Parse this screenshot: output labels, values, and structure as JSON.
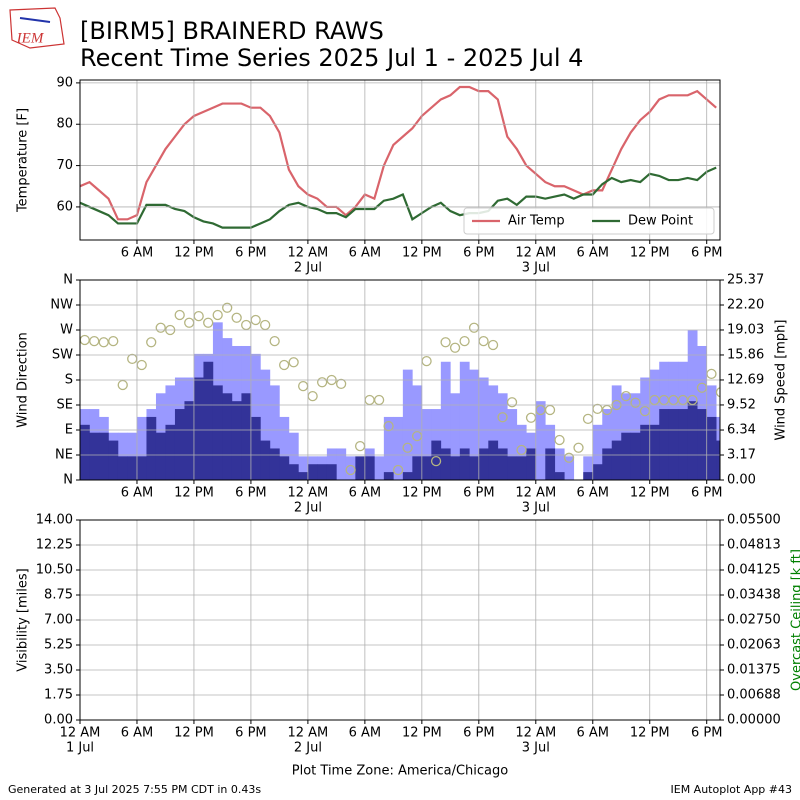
{
  "header": {
    "logo": "IEM",
    "title": "[BIRM5] BRAINERD RAWS",
    "subtitle": "Recent Time Series 2025 Jul 1 - 2025 Jul 4"
  },
  "footer": {
    "left": "Generated at 3 Jul 2025 7:55 PM CDT in 0.43s",
    "right": "IEM Autoplot App #43"
  },
  "chart_data": [
    {
      "type": "line",
      "ylabel": "Temperature [F]",
      "xlim": [
        0,
        67.4
      ],
      "ylim": [
        52,
        90.7
      ],
      "yticks": [
        60,
        70,
        80,
        90
      ],
      "grid": true,
      "legend": "lower-right",
      "xticks": [
        {
          "value": 6,
          "label": "6 AM"
        },
        {
          "value": 12,
          "label": "12 PM"
        },
        {
          "value": 18,
          "label": "6 PM"
        },
        {
          "value": 24,
          "label": "12 AM"
        },
        {
          "value": 30,
          "label": "6 AM"
        },
        {
          "value": 36,
          "label": "12 PM"
        },
        {
          "value": 42,
          "label": "6 PM"
        },
        {
          "value": 48,
          "label": "12 AM"
        },
        {
          "value": 54,
          "label": "6 AM"
        },
        {
          "value": 60,
          "label": "12 PM"
        },
        {
          "value": 66,
          "label": "6 PM"
        }
      ],
      "xdates": [
        {
          "value": 24,
          "label": "2 Jul"
        },
        {
          "value": 48,
          "label": "3 Jul"
        }
      ],
      "x": [
        0,
        1,
        2,
        3,
        4,
        5,
        6,
        7,
        8,
        9,
        10,
        11,
        12,
        13,
        14,
        15,
        16,
        17,
        18,
        19,
        20,
        21,
        22,
        23,
        24,
        25,
        26,
        27,
        28,
        29,
        30,
        31,
        32,
        33,
        34,
        35,
        36,
        37,
        38,
        39,
        40,
        41,
        42,
        43,
        44,
        45,
        46,
        47,
        48,
        49,
        50,
        51,
        52,
        53,
        54,
        55,
        56,
        57,
        58,
        59,
        60,
        61,
        62,
        63,
        64,
        65,
        66,
        67
      ],
      "series": [
        {
          "name": "Air Temp",
          "color": "#d9646b",
          "values": [
            65,
            66,
            64,
            62,
            57,
            57,
            58,
            66,
            70,
            74,
            77,
            80,
            82,
            83,
            84,
            85,
            85,
            85,
            84,
            84,
            82,
            78,
            69,
            65,
            63,
            62,
            60,
            60,
            58,
            60,
            63,
            62,
            70,
            75,
            77,
            79,
            82,
            84,
            86,
            87,
            89,
            89,
            88,
            88,
            86,
            77,
            74,
            70,
            68,
            66,
            65,
            65,
            64,
            63,
            64,
            64,
            69,
            74,
            78,
            81,
            83,
            86,
            87,
            87,
            87,
            88,
            86,
            84
          ]
        },
        {
          "name": "Dew Point",
          "color": "#2f6a33",
          "values": [
            61,
            60,
            59,
            58,
            56,
            56,
            56,
            60.5,
            60.5,
            60.5,
            59.5,
            59,
            57.5,
            56.5,
            56,
            55,
            55,
            55,
            55,
            56,
            57,
            59,
            60.5,
            61,
            60,
            59.5,
            58.5,
            58.5,
            57.5,
            59.5,
            59.5,
            59.5,
            61.5,
            62,
            63,
            57,
            58.5,
            60,
            61,
            59,
            58,
            58.5,
            58.5,
            59,
            61.5,
            62,
            60.5,
            62.5,
            62.5,
            62,
            62.5,
            63,
            62,
            63,
            63,
            65.5,
            67,
            66,
            66.5,
            66,
            68,
            67.5,
            66.5,
            66.5,
            67,
            66.5,
            68.5,
            69.5
          ]
        }
      ]
    },
    {
      "type": "combo",
      "ylabel": "Wind Direction",
      "y2label": "Wind Speed [mph]",
      "xlim": [
        0,
        67.4
      ],
      "ylim": [
        0,
        360
      ],
      "y2lim": [
        0,
        25.37
      ],
      "grid": true,
      "yticks": [
        {
          "value": 0,
          "label": "N"
        },
        {
          "value": 45,
          "label": "NE"
        },
        {
          "value": 90,
          "label": "E"
        },
        {
          "value": 135,
          "label": "SE"
        },
        {
          "value": 180,
          "label": "S"
        },
        {
          "value": 225,
          "label": "SW"
        },
        {
          "value": 270,
          "label": "W"
        },
        {
          "value": 315,
          "label": "NW"
        },
        {
          "value": 360,
          "label": "N"
        }
      ],
      "y2ticks": [
        {
          "value": 0,
          "label": "0.00"
        },
        3.17,
        6.34,
        9.52,
        12.69,
        15.86,
        19.03,
        {
          "value": 22.2,
          "label": "22.20"
        },
        25.37
      ],
      "xticks": [
        {
          "value": 6,
          "label": "6 AM"
        },
        {
          "value": 12,
          "label": "12 PM"
        },
        {
          "value": 18,
          "label": "6 PM"
        },
        {
          "value": 24,
          "label": "12 AM"
        },
        {
          "value": 30,
          "label": "6 AM"
        },
        {
          "value": 36,
          "label": "12 PM"
        },
        {
          "value": 42,
          "label": "6 PM"
        },
        {
          "value": 48,
          "label": "12 AM"
        },
        {
          "value": 54,
          "label": "6 AM"
        },
        {
          "value": 60,
          "label": "12 PM"
        },
        {
          "value": 66,
          "label": "6 PM"
        }
      ],
      "xdates": [
        {
          "value": 24,
          "label": "2 Jul"
        },
        {
          "value": 48,
          "label": "3 Jul"
        }
      ],
      "x": [
        0,
        1,
        2,
        3,
        4,
        5,
        6,
        7,
        8,
        9,
        10,
        11,
        12,
        13,
        14,
        15,
        16,
        17,
        18,
        19,
        20,
        21,
        22,
        23,
        24,
        25,
        26,
        27,
        28,
        29,
        30,
        31,
        32,
        33,
        34,
        35,
        36,
        37,
        38,
        39,
        40,
        41,
        42,
        43,
        44,
        45,
        46,
        47,
        48,
        49,
        50,
        51,
        52,
        53,
        54,
        55,
        56,
        57,
        58,
        59,
        60,
        61,
        62,
        63,
        64,
        65,
        66,
        67
      ],
      "series": [
        {
          "kind": "bar",
          "axis": "y2",
          "color": "#9999ff",
          "values": [
            9,
            9,
            8,
            6,
            6,
            6,
            8,
            9,
            11,
            12,
            13,
            13,
            16,
            16,
            20,
            18,
            17,
            17,
            16,
            14,
            12,
            8,
            6,
            3,
            3,
            3,
            4,
            4,
            3,
            1,
            4,
            3,
            8,
            8,
            14,
            12,
            9,
            9,
            15,
            11,
            15,
            14,
            13,
            12,
            11,
            9,
            7,
            6,
            10,
            7,
            4,
            3,
            0,
            3,
            7,
            9,
            12,
            11,
            11,
            13,
            14,
            15,
            15,
            15,
            19,
            17,
            12,
            8
          ]
        },
        {
          "kind": "bar",
          "axis": "y2",
          "color": "#333399",
          "values": [
            7,
            6,
            6,
            5,
            3,
            3,
            3,
            8,
            6,
            7,
            9,
            10,
            13,
            15,
            12,
            11,
            10,
            11,
            8,
            5,
            4,
            3,
            2,
            1,
            2,
            2,
            2,
            0,
            0,
            3,
            3,
            0,
            1,
            0,
            1,
            3,
            3,
            5,
            4,
            3,
            4,
            3,
            4,
            5,
            4,
            3,
            3,
            4,
            0,
            4,
            1,
            0,
            0,
            1,
            2,
            4,
            5,
            6,
            6,
            7,
            7,
            9,
            9,
            9,
            10,
            9,
            8,
            5
          ]
        },
        {
          "kind": "scatter",
          "color": "#b5b582",
          "values": [
            252,
            250,
            248,
            250,
            171,
            218,
            207,
            248,
            274,
            270,
            297,
            283,
            295,
            283,
            297,
            310,
            292,
            279,
            288,
            279,
            250,
            207,
            212,
            169,
            151,
            176,
            180,
            173,
            18,
            61,
            144,
            144,
            97,
            18,
            58,
            79,
            214,
            34,
            248,
            238,
            250,
            274,
            250,
            243,
            113,
            140,
            54,
            112,
            126,
            126,
            72,
            40,
            58,
            110,
            128,
            126,
            135,
            151,
            139,
            124,
            144,
            144,
            144,
            144,
            144,
            166,
            191,
            158
          ]
        }
      ]
    },
    {
      "type": "line",
      "ylabel": "Visibility [miles]",
      "y2label": "Overcast Ceiling [k ft]",
      "y2color": "#008000",
      "xlim": [
        0,
        67.4
      ],
      "ylim": [
        0,
        14
      ],
      "y2lim": [
        0,
        0.055
      ],
      "grid": true,
      "yticks": [
        {
          "value": 0,
          "label": "0.00"
        },
        1.75,
        {
          "value": 3.5,
          "label": "3.50"
        },
        5.25,
        {
          "value": 7,
          "label": "7.00"
        },
        8.75,
        {
          "value": 10.5,
          "label": "10.50"
        },
        12.25,
        {
          "value": 14,
          "label": "14.00"
        }
      ],
      "y2ticks": [
        {
          "value": 0,
          "label": "0.00000"
        },
        {
          "value": 0.006875,
          "label": "0.00688"
        },
        {
          "value": 0.01375,
          "label": "0.01375"
        },
        {
          "value": 0.020625,
          "label": "0.02063"
        },
        {
          "value": 0.0275,
          "label": "0.02750"
        },
        {
          "value": 0.034375,
          "label": "0.03438"
        },
        {
          "value": 0.04125,
          "label": "0.04125"
        },
        {
          "value": 0.048125,
          "label": "0.04813"
        },
        {
          "value": 0.055,
          "label": "0.05500"
        }
      ],
      "xticks": [
        {
          "value": 0,
          "label": "12 AM"
        },
        {
          "value": 6,
          "label": "6 AM"
        },
        {
          "value": 12,
          "label": "12 PM"
        },
        {
          "value": 18,
          "label": "6 PM"
        },
        {
          "value": 24,
          "label": "12 AM"
        },
        {
          "value": 30,
          "label": "6 AM"
        },
        {
          "value": 36,
          "label": "12 PM"
        },
        {
          "value": 42,
          "label": "6 PM"
        },
        {
          "value": 48,
          "label": "12 AM"
        },
        {
          "value": 54,
          "label": "6 AM"
        },
        {
          "value": 60,
          "label": "12 PM"
        },
        {
          "value": 66,
          "label": "6 PM"
        }
      ],
      "xdates": [
        {
          "value": 0,
          "label": "1 Jul"
        },
        {
          "value": 24,
          "label": "2 Jul"
        },
        {
          "value": 48,
          "label": "3 Jul"
        }
      ],
      "xlabel": "Plot Time Zone: America/Chicago",
      "x": [],
      "series": []
    }
  ]
}
